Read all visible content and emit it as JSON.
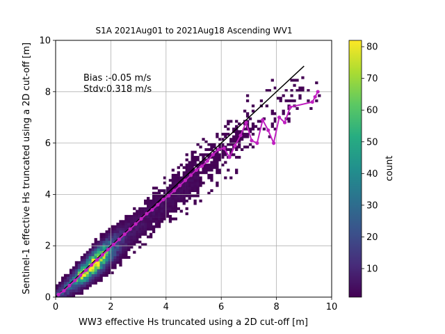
{
  "chart_data": {
    "type": "heatmap",
    "title": "S1A 2021Aug01 to 2021Aug18 Ascending WV1",
    "xlabel": "WW3 effective Hs truncated using a 2D cut-off [m]",
    "ylabel": "Sentinel-1 effective Hs truncated using a 2D cut-off [m]",
    "xlim": [
      0,
      10
    ],
    "ylim": [
      0,
      10
    ],
    "xticks": [
      "0",
      "2",
      "4",
      "6",
      "8",
      "10"
    ],
    "yticks": [
      "0",
      "2",
      "4",
      "6",
      "8",
      "10"
    ],
    "grid": true,
    "annotation": {
      "bias": "Bias :-0.05 m/s",
      "stdv": "Stdv:0.318 m/s"
    },
    "colorbar": {
      "label": "count",
      "range": [
        1,
        82
      ],
      "ticks": [
        "10",
        "20",
        "30",
        "40",
        "50",
        "60",
        "70",
        "80"
      ],
      "colormap": "viridis"
    },
    "identity_line": {
      "x": [
        0,
        9
      ],
      "y": [
        0,
        9
      ],
      "color": "#000000"
    },
    "binned_mean": {
      "color": "#c020c0",
      "x": [
        0.1,
        0.3,
        0.5,
        0.7,
        0.9,
        1.1,
        1.3,
        1.5,
        1.7,
        1.9,
        2.1,
        2.3,
        2.5,
        2.7,
        2.9,
        3.1,
        3.3,
        3.5,
        3.7,
        3.9,
        4.1,
        4.3,
        4.5,
        4.7,
        4.9,
        5.1,
        5.3,
        5.5,
        5.7,
        5.9,
        6.1,
        6.3,
        6.5,
        6.7,
        6.9,
        7.1,
        7.3,
        7.5,
        7.7,
        7.9,
        8.1,
        8.3,
        8.5,
        9.3,
        9.4,
        9.5
      ],
      "y": [
        0.1,
        0.25,
        0.45,
        0.65,
        0.85,
        1.05,
        1.25,
        1.45,
        1.65,
        1.85,
        2.05,
        2.25,
        2.45,
        2.65,
        2.85,
        3.05,
        3.25,
        3.4,
        3.6,
        3.8,
        3.95,
        4.15,
        4.35,
        4.55,
        4.75,
        4.95,
        5.1,
        5.3,
        5.55,
        5.75,
        5.8,
        5.45,
        5.9,
        6.3,
        6.8,
        6.1,
        6.0,
        6.9,
        6.5,
        6.0,
        7.0,
        6.8,
        7.4,
        7.6,
        7.8,
        8.0
      ]
    }
  }
}
